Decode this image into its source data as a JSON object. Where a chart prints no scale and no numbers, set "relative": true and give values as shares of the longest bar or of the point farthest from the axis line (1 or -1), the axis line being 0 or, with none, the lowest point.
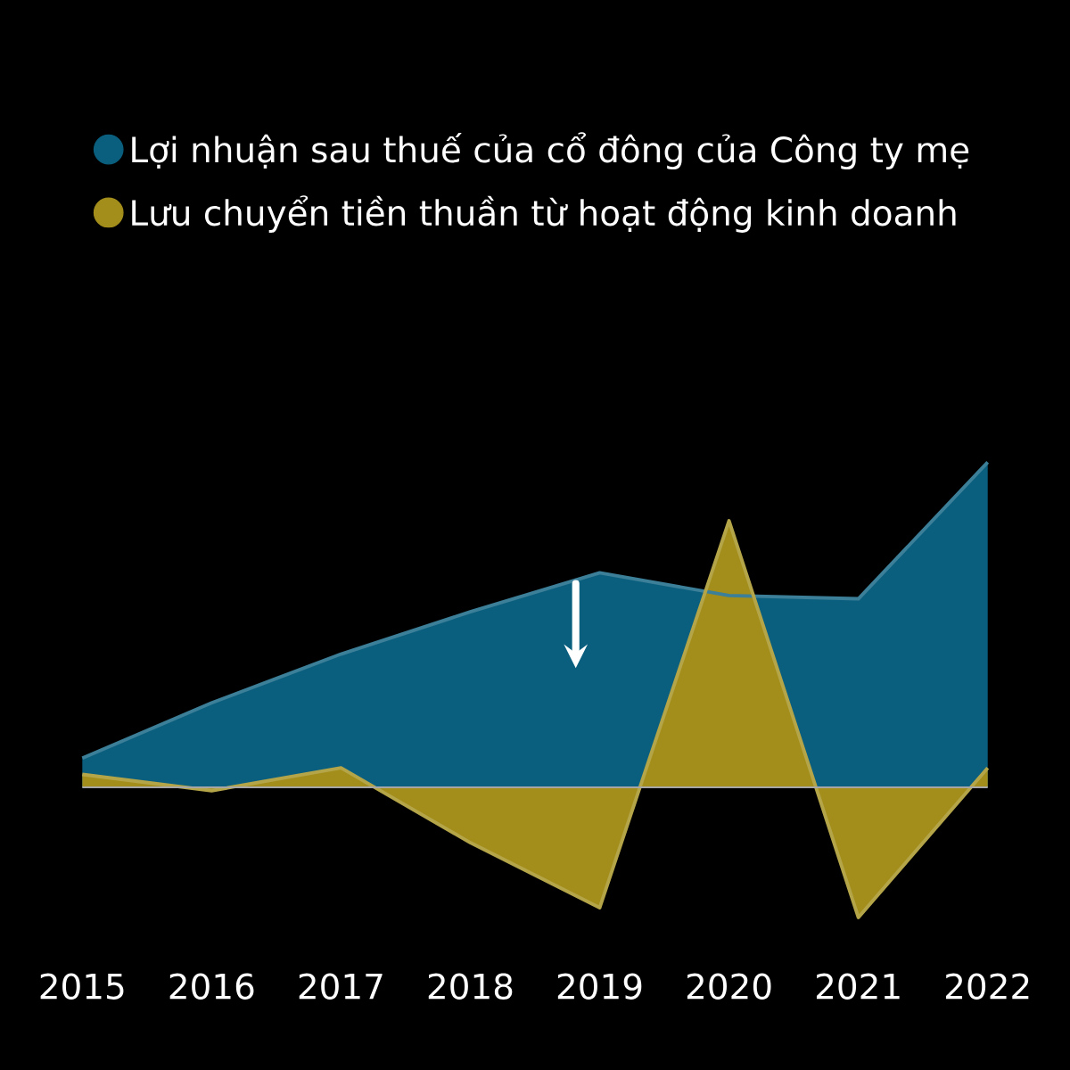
{
  "chart_data": {
    "type": "area",
    "relative": true,
    "legend": "top",
    "categories": [
      "2015",
      "2016",
      "2017",
      "2018",
      "2019",
      "2020",
      "2021",
      "2022"
    ],
    "series": [
      {
        "name": "Lợi nhuận sau thuế của cổ đông của Công ty mẹ",
        "color": "#0b5f7e",
        "values": [
          0.09,
          0.26,
          0.41,
          0.54,
          0.66,
          0.59,
          0.58,
          1.0
        ]
      },
      {
        "name": "Lưu chuyển tiền thuần từ hoạt động kinh doanh",
        "color": "#a38e1c",
        "values": [
          0.04,
          -0.01,
          0.06,
          -0.17,
          -0.37,
          0.82,
          -0.4,
          0.06
        ]
      }
    ]
  }
}
